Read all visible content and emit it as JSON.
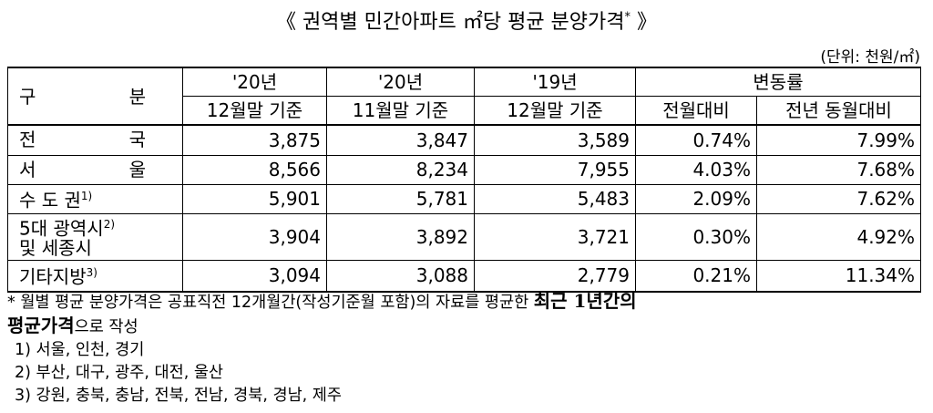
{
  "header": {
    "title": "《 권역별 민간아파트 ㎡당 평균 분양가격",
    "title_mark": "*",
    "title_end": "》",
    "unit": "(단위: 천원/㎡)"
  },
  "table": {
    "head": {
      "label": "구 분",
      "columns": [
        [
          "'20년",
          "12월말 기준"
        ],
        [
          "'20년",
          "11월말 기준"
        ],
        [
          "'19년",
          "12월말 기준"
        ]
      ],
      "change": "변동률",
      "change_columns": [
        "전월대비",
        "전년 동월대비"
      ]
    },
    "rows": [
      {
        "label": "전 국",
        "values": [
          "3,875",
          "3,847",
          "3,589",
          "0.74%",
          "7.99%"
        ]
      },
      {
        "label": "서 울",
        "values": [
          "8,566",
          "8,234",
          "7,955",
          "4.03%",
          "7.68%"
        ]
      },
      {
        "label": "수 도 권",
        "note": "1)",
        "values": [
          "5,901",
          "5,781",
          "5,483",
          "2.09%",
          "7.62%"
        ]
      },
      {
        "label": "5대 광역시",
        "note": "2)",
        "label2": "및 세종시",
        "values": [
          "3,904",
          "3,892",
          "3,721",
          "0.30%",
          "4.92%"
        ]
      },
      {
        "label": "기타지방",
        "note": "3)",
        "values": [
          "3,094",
          "3,088",
          "2,779",
          "0.21%",
          "11.34%"
        ]
      }
    ]
  },
  "notes": {
    "main": [
      "* 월별 평균 분양가격은 공표직전 12개월간(작성기준월 포함)의 자료를 평균한 ",
      "최근 1년간의",
      "평균가격",
      "으로 작성"
    ],
    "items": [
      "1) 서울, 인천, 경기",
      "2) 부산, 대구, 광주, 대전, 울산",
      "3) 강원, 충북, 충남, 전북, 전남, 경북, 경남, 제주"
    ]
  }
}
